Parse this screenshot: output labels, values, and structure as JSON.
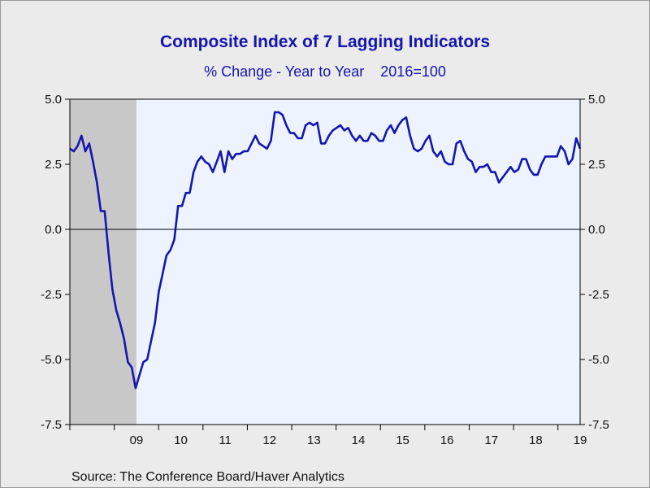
{
  "chart_data": {
    "type": "line",
    "title": "Composite Index of 7 Lagging Indicators",
    "subtitle": "% Change - Year to Year    2016=100",
    "source": "Source:  The Conference Board/Haver Analytics",
    "xlabel": "",
    "ylabel": "",
    "ylim": [
      -7.5,
      5.0
    ],
    "xlim": [
      2008.0,
      2019.5
    ],
    "y_ticks": [
      "5.0",
      "2.5",
      "0.0",
      "-2.5",
      "-5.0",
      "-7.5"
    ],
    "x_tick_labels": [
      "09",
      "10",
      "11",
      "12",
      "13",
      "14",
      "15",
      "16",
      "17",
      "18",
      "19"
    ],
    "recession_shading": [
      [
        2008.0,
        2009.5
      ]
    ],
    "zero_line": true,
    "grid": false,
    "colors": {
      "line": "#1515b0",
      "plot_bg": "#eef4ff",
      "recession": "#c8c8c8",
      "title": "#1515b0"
    },
    "series": [
      {
        "values": [
          3.1,
          3.0,
          3.2,
          3.6,
          3.0,
          3.3,
          2.6,
          1.8,
          0.7,
          0.7,
          -0.9,
          -2.3,
          -3.1,
          -3.6,
          -4.2,
          -5.1,
          -5.3,
          -6.1,
          -5.6,
          -5.1,
          -5.0,
          -4.3,
          -3.6,
          -2.4,
          -1.7,
          -1.0,
          -0.8,
          -0.4,
          0.9,
          0.9,
          1.4,
          1.4,
          2.2,
          2.6,
          2.8,
          2.6,
          2.5,
          2.2,
          2.6,
          3.0,
          2.2,
          3.0,
          2.7,
          2.9,
          2.9,
          3.0,
          3.0,
          3.3,
          3.6,
          3.3,
          3.2,
          3.1,
          3.4,
          4.5,
          4.5,
          4.4,
          4.0,
          3.7,
          3.7,
          3.5,
          3.5,
          4.0,
          4.1,
          4.0,
          4.1,
          3.3,
          3.3,
          3.6,
          3.8,
          3.9,
          4.0,
          3.8,
          3.9,
          3.6,
          3.4,
          3.6,
          3.4,
          3.4,
          3.7,
          3.6,
          3.4,
          3.4,
          3.8,
          4.0,
          3.7,
          4.0,
          4.2,
          4.3,
          3.6,
          3.1,
          3.0,
          3.1,
          3.4,
          3.6,
          3.0,
          2.8,
          3.0,
          2.6,
          2.5,
          2.5,
          3.3,
          3.4,
          3.0,
          2.7,
          2.6,
          2.2,
          2.4,
          2.4,
          2.5,
          2.2,
          2.2,
          1.8,
          2.0,
          2.2,
          2.4,
          2.2,
          2.3,
          2.7,
          2.7,
          2.3,
          2.1,
          2.1,
          2.5,
          2.8,
          2.8,
          2.8,
          2.8,
          3.2,
          3.0,
          2.5,
          2.7,
          3.5,
          3.1
        ]
      }
    ]
  }
}
